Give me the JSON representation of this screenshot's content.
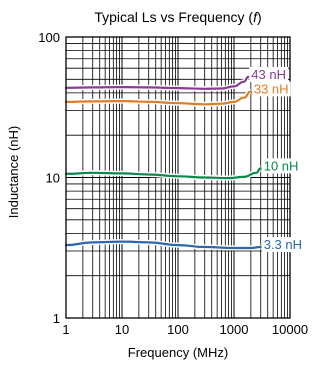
{
  "chart_data": {
    "type": "line",
    "title": "Typical Ls vs Frequency (",
    "title_symbol": "f",
    "title_close": ")",
    "xlabel": "Frequency (MHz)",
    "ylabel": "Inductance (nH)",
    "xscale": "log",
    "yscale": "log",
    "xlim": [
      1,
      10000
    ],
    "ylim": [
      1,
      100
    ],
    "xticks": [
      {
        "value": 1,
        "label": "1"
      },
      {
        "value": 10,
        "label": "10"
      },
      {
        "value": 100,
        "label": "100"
      },
      {
        "value": 1000,
        "label": "1000"
      },
      {
        "value": 10000,
        "label": "10000"
      }
    ],
    "yticks": [
      {
        "value": 1,
        "label": "1"
      },
      {
        "value": 10,
        "label": "10"
      },
      {
        "value": 100,
        "label": "100"
      }
    ],
    "grid": true,
    "series": [
      {
        "name": "43 nH",
        "color": "#8b3a96",
        "points": [
          [
            1,
            43.5
          ],
          [
            3,
            43.8
          ],
          [
            10,
            44
          ],
          [
            30,
            43.8
          ],
          [
            100,
            43.3
          ],
          [
            300,
            42.8
          ],
          [
            600,
            43
          ],
          [
            1000,
            44.5
          ],
          [
            1500,
            48
          ],
          [
            1800,
            52
          ]
        ]
      },
      {
        "name": "33 nH",
        "color": "#e07b26",
        "points": [
          [
            1,
            34.5
          ],
          [
            3,
            34.8
          ],
          [
            10,
            35
          ],
          [
            30,
            34.6
          ],
          [
            100,
            33.8
          ],
          [
            300,
            33.2
          ],
          [
            600,
            33.5
          ],
          [
            1000,
            34.5
          ],
          [
            1500,
            37
          ],
          [
            2000,
            41
          ]
        ]
      },
      {
        "name": "10 nH",
        "color": "#0a8a4a",
        "points": [
          [
            1,
            10.6
          ],
          [
            3,
            10.8
          ],
          [
            10,
            10.7
          ],
          [
            30,
            10.5
          ],
          [
            100,
            10.2
          ],
          [
            300,
            10.0
          ],
          [
            800,
            9.9
          ],
          [
            1500,
            10.1
          ],
          [
            2500,
            10.8
          ],
          [
            3000,
            11.6
          ]
        ]
      },
      {
        "name": "3.3 nH",
        "color": "#2b66ae",
        "points": [
          [
            1,
            3.3
          ],
          [
            3,
            3.45
          ],
          [
            10,
            3.5
          ],
          [
            30,
            3.45
          ],
          [
            100,
            3.3
          ],
          [
            300,
            3.2
          ],
          [
            1000,
            3.15
          ],
          [
            2000,
            3.15
          ],
          [
            3000,
            3.2
          ]
        ]
      }
    ]
  }
}
